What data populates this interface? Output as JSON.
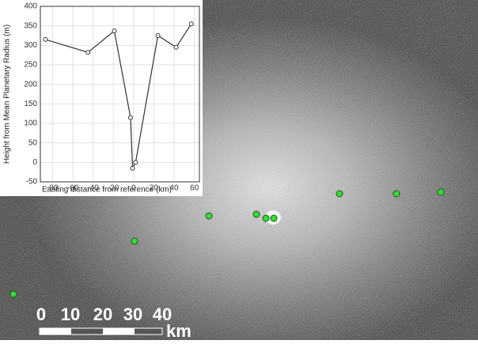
{
  "chart_data": {
    "type": "line",
    "x_label": "Easting distance from reference (km)",
    "y_label": "Height from Mean Planetary Radius (m)",
    "x": [
      -87,
      -45,
      -19,
      -3,
      -1,
      2,
      24,
      42,
      57
    ],
    "series": [
      {
        "color": "#333333",
        "values": [
          315,
          282,
          337,
          115,
          -15,
          0,
          325,
          295,
          355
        ]
      }
    ],
    "xlim": [
      -92,
      65
    ],
    "xticks": [
      -80,
      -60,
      -40,
      -20,
      0,
      20,
      40,
      60
    ],
    "ylim": [
      -50,
      400
    ],
    "yticks": [
      -50,
      0,
      50,
      100,
      150,
      200,
      250,
      300,
      350,
      400
    ],
    "grid": true
  },
  "scale_bar": {
    "labels": [
      "0",
      "10",
      "20",
      "30",
      "40"
    ],
    "unit": "km"
  }
}
